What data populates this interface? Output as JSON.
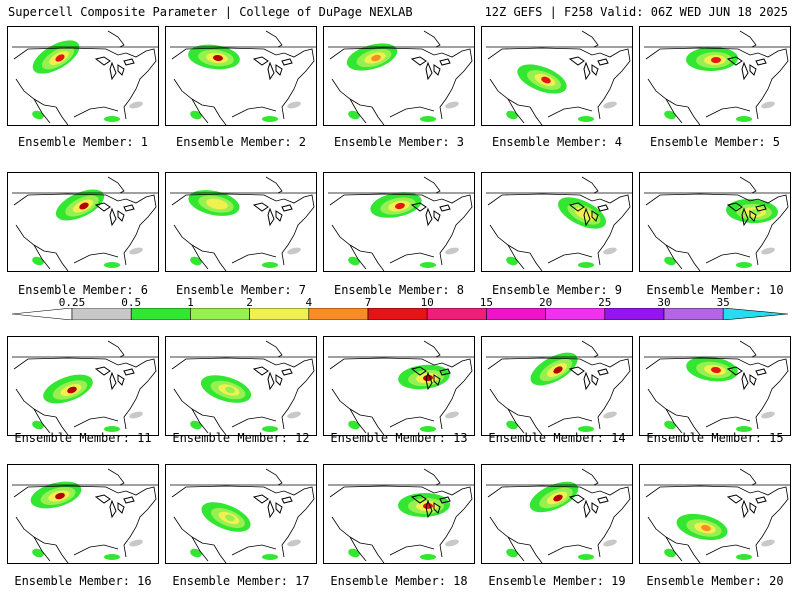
{
  "header": {
    "left_title": "Supercell Composite Parameter | College of DuPage NEXLAB",
    "right_title": "12Z GEFS | F258 Valid: 06Z WED JUN 18 2025"
  },
  "colorbar": {
    "labels": [
      "0.25",
      "0.5",
      "1",
      "2",
      "4",
      "7",
      "10",
      "15",
      "20",
      "25",
      "30",
      "35"
    ],
    "colors": [
      "#c8c8c8",
      "#32e632",
      "#96f050",
      "#f0f050",
      "#fa8c28",
      "#e61414",
      "#f01e78",
      "#f014c8",
      "#f032f0",
      "#9614f0",
      "#b464e6",
      "#28dcf0"
    ]
  },
  "panels": [
    {
      "label": "Ensemble Member: 1",
      "max_color": "#e61414",
      "region": "northern plains"
    },
    {
      "label": "Ensemble Member: 2",
      "max_color": "#b40000",
      "region": "northern plains"
    },
    {
      "label": "Ensemble Member: 3",
      "max_color": "#fa8c28",
      "region": "northern plains"
    },
    {
      "label": "Ensemble Member: 4",
      "max_color": "#e61414",
      "region": "central plains"
    },
    {
      "label": "Ensemble Member: 5",
      "max_color": "#e61414",
      "region": "upper midwest"
    },
    {
      "label": "Ensemble Member: 6",
      "max_color": "#b40000",
      "region": "upper midwest"
    },
    {
      "label": "Ensemble Member: 7",
      "max_color": "#f0f050",
      "region": "northern plains"
    },
    {
      "label": "Ensemble Member: 8",
      "max_color": "#e61414",
      "region": "upper midwest"
    },
    {
      "label": "Ensemble Member: 9",
      "max_color": "#f0f050",
      "region": "great lakes"
    },
    {
      "label": "Ensemble Member: 10",
      "max_color": "#96f050",
      "region": "northeast"
    },
    {
      "label": "Ensemble Member: 11",
      "max_color": "#b40000",
      "region": "central plains"
    },
    {
      "label": "Ensemble Member: 12",
      "max_color": "#96f050",
      "region": "central plains"
    },
    {
      "label": "Ensemble Member: 13",
      "max_color": "#b40000",
      "region": "great lakes"
    },
    {
      "label": "Ensemble Member: 14",
      "max_color": "#b40000",
      "region": "upper midwest"
    },
    {
      "label": "Ensemble Member: 15",
      "max_color": "#e61414",
      "region": "upper midwest"
    },
    {
      "label": "Ensemble Member: 16",
      "max_color": "#b40000",
      "region": "northern plains"
    },
    {
      "label": "Ensemble Member: 17",
      "max_color": "#96f050",
      "region": "central plains"
    },
    {
      "label": "Ensemble Member: 18",
      "max_color": "#e61414",
      "region": "great lakes"
    },
    {
      "label": "Ensemble Member: 19",
      "max_color": "#b40000",
      "region": "upper midwest"
    },
    {
      "label": "Ensemble Member: 20",
      "max_color": "#fa8c28",
      "region": "southern plains"
    }
  ]
}
